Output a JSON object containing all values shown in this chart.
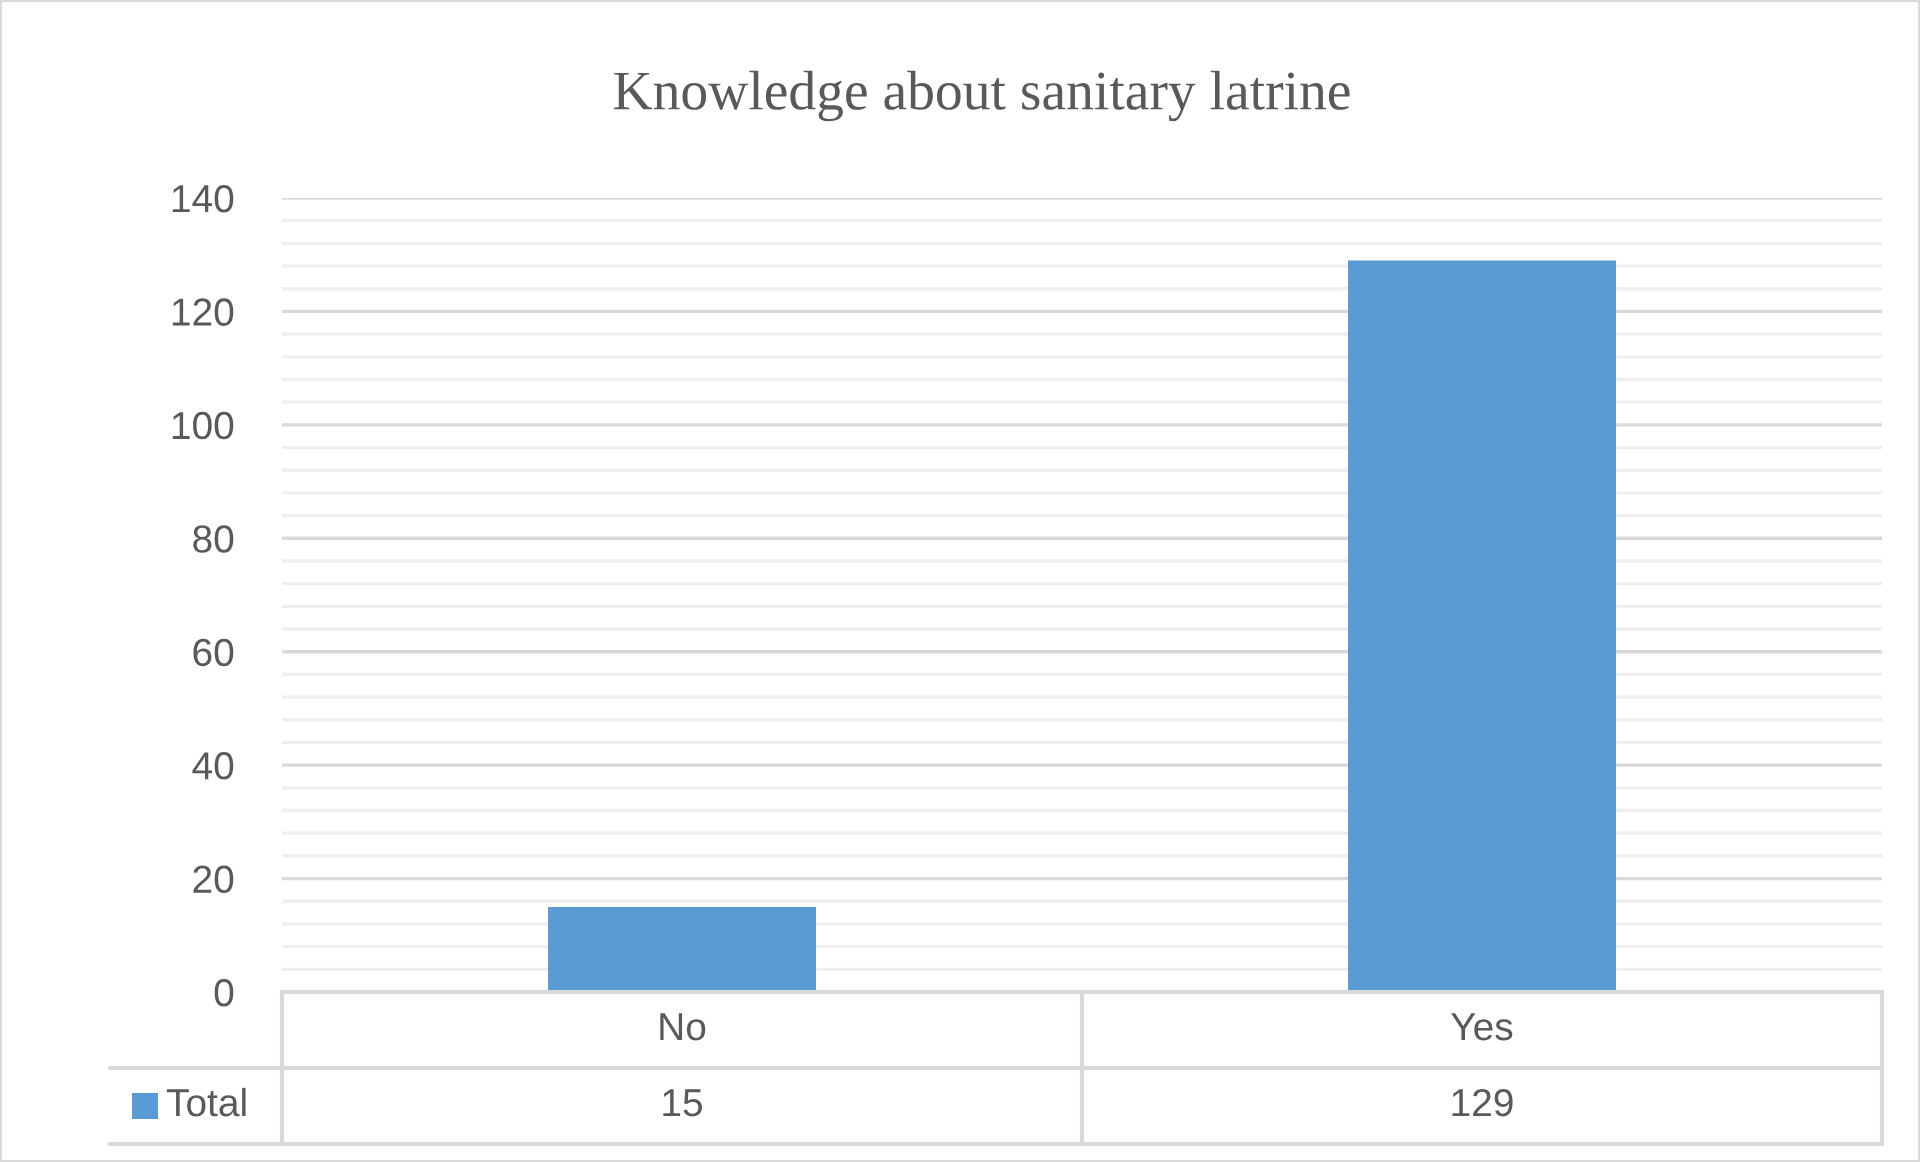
{
  "chart_data": {
    "type": "bar",
    "title": "Knowledge about sanitary latrine",
    "categories": [
      "No",
      "Yes"
    ],
    "series": [
      {
        "name": "Total",
        "color": "#5b9bd5",
        "values": [
          15,
          129
        ]
      }
    ],
    "ylim": [
      0,
      140
    ],
    "yticks": [
      0,
      20,
      40,
      60,
      80,
      100,
      120,
      140
    ],
    "grid": "y",
    "legend": "bottom left",
    "data_labels": true
  }
}
